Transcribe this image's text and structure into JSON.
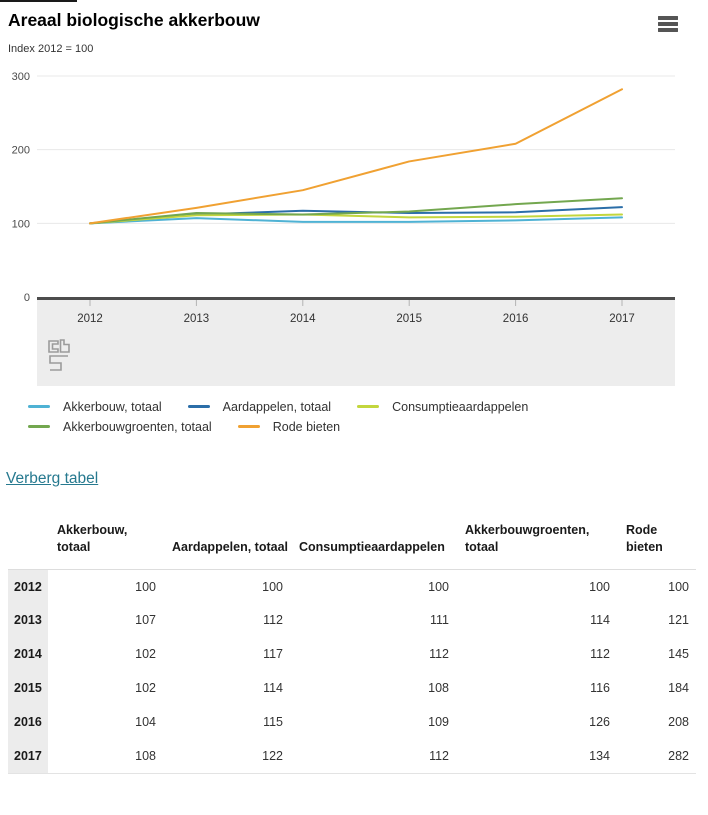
{
  "header": {
    "title": "Areaal biologische akkerbouw",
    "subtitle": "Index 2012 = 100",
    "menu_icon": "hamburger-icon"
  },
  "chart_data": {
    "type": "line",
    "title": "Areaal biologische akkerbouw",
    "subtitle": "Index 2012 = 100",
    "x": [
      2012,
      2013,
      2014,
      2015,
      2016,
      2017
    ],
    "series": [
      {
        "name": "Akkerbouw, totaal",
        "color": "#4fb2d4",
        "values": [
          100,
          107,
          102,
          102,
          104,
          108
        ]
      },
      {
        "name": "Aardappelen, totaal",
        "color": "#2b6ea8",
        "values": [
          100,
          112,
          117,
          114,
          115,
          122
        ]
      },
      {
        "name": "Consumptieaardappelen",
        "color": "#c3d63d",
        "values": [
          100,
          111,
          112,
          108,
          109,
          112
        ]
      },
      {
        "name": "Akkerbouwgroenten, totaal",
        "color": "#73a74f",
        "values": [
          100,
          114,
          112,
          116,
          126,
          134
        ]
      },
      {
        "name": "Rode bieten",
        "color": "#f0a132",
        "values": [
          100,
          121,
          145,
          184,
          208,
          282
        ]
      }
    ],
    "xlabel": "",
    "ylabel": "",
    "ylim": [
      0,
      300
    ],
    "yticks": [
      0,
      100,
      200,
      300
    ],
    "grid": true,
    "legend_position": "bottom",
    "legend_rows": [
      [
        0,
        1,
        2
      ],
      [
        3,
        4
      ]
    ],
    "watermark": "cbs-logo"
  },
  "table_link": {
    "label": "Verberg tabel"
  },
  "table": {
    "columns": [
      "Akkerbouw, totaal",
      "Aardappelen, totaal",
      "Consumptieaardappelen",
      "Akkerbouwgroenten, totaal",
      "Rode bieten"
    ],
    "rows": [
      {
        "year": "2012",
        "values": [
          100,
          100,
          100,
          100,
          100
        ]
      },
      {
        "year": "2013",
        "values": [
          107,
          112,
          111,
          114,
          121
        ]
      },
      {
        "year": "2014",
        "values": [
          102,
          117,
          112,
          112,
          145
        ]
      },
      {
        "year": "2015",
        "values": [
          102,
          114,
          108,
          116,
          184
        ]
      },
      {
        "year": "2016",
        "values": [
          104,
          115,
          109,
          126,
          208
        ]
      },
      {
        "year": "2017",
        "values": [
          108,
          122,
          112,
          134,
          282
        ]
      }
    ]
  },
  "colors": {
    "axis": "#4d4d4d",
    "gridline": "#e8e8e8",
    "band": "#ededed",
    "tick": "#b3b3b3",
    "link": "#26798f"
  }
}
